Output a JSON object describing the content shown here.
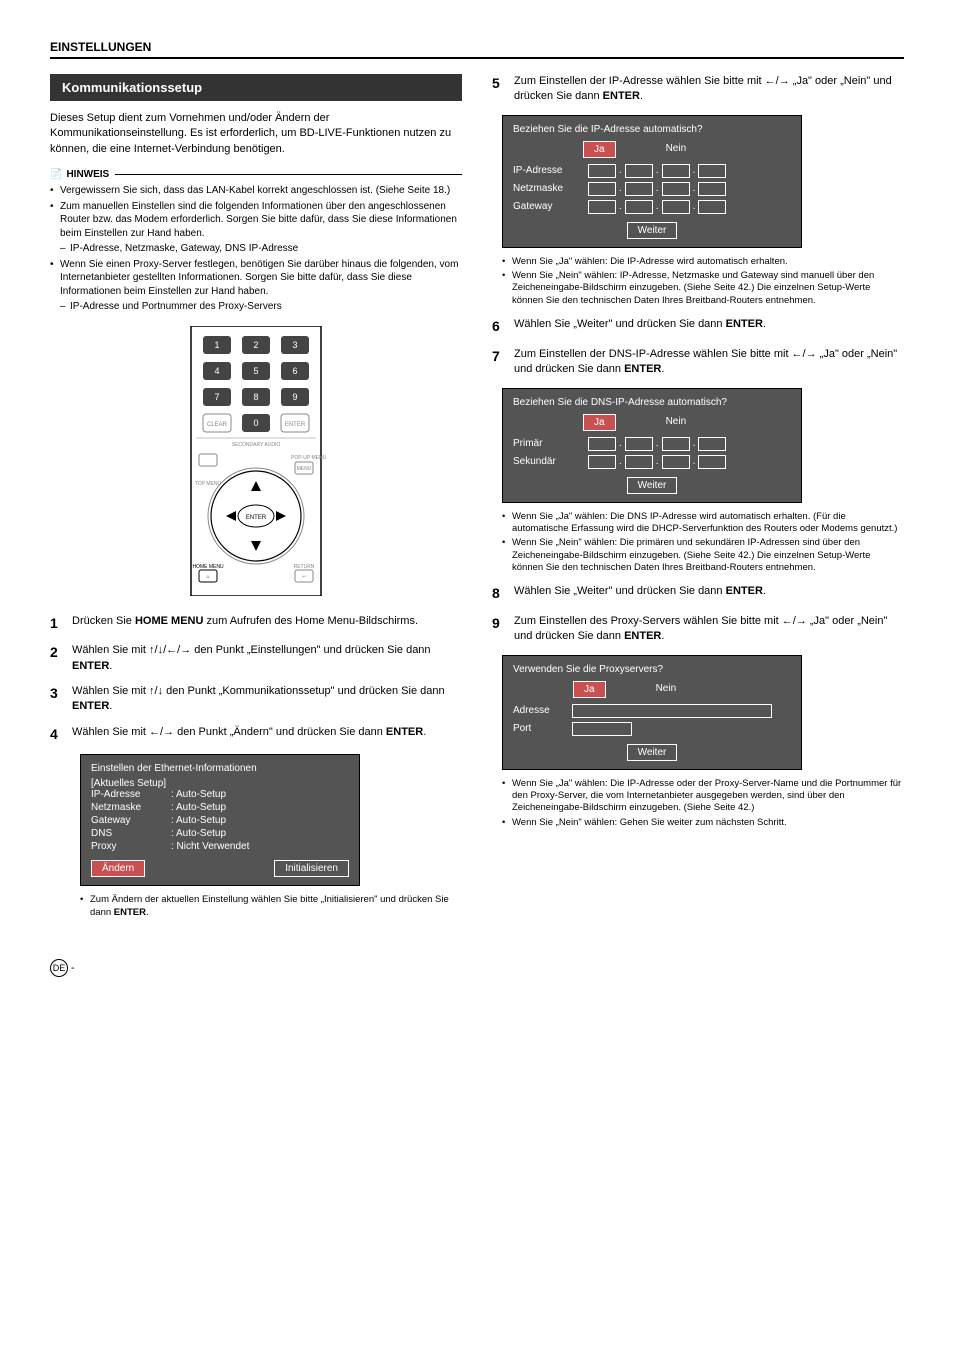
{
  "header": "EINSTELLUNGEN",
  "section_heading": "Kommunikationssetup",
  "intro": "Dieses Setup dient zum Vornehmen und/oder Ändern der Kommunikationseinstellung. Es ist erforderlich, um BD-LIVE-Funktionen nutzen zu können, die eine Internet-Verbindung benötigen.",
  "note_label": "HINWEIS",
  "notes": [
    "Vergewissern Sie sich, dass das LAN-Kabel korrekt angeschlossen ist. (Siehe Seite 18.)",
    "Zum manuellen Einstellen sind die folgenden Informationen über den angeschlossenen Router bzw. das Modem erforderlich. Sorgen Sie bitte dafür, dass Sie diese Informationen beim Einstellen zur Hand haben."
  ],
  "notes_sub1": "IP-Adresse, Netzmaske, Gateway, DNS IP-Adresse",
  "notes2": "Wenn Sie einen Proxy-Server festlegen, benötigen Sie darüber hinaus die folgenden, vom Internetanbieter gestellten Informationen. Sorgen Sie bitte dafür, dass Sie diese Informationen beim Einstellen zur Hand haben.",
  "notes_sub2": "IP-Adresse und Portnummer des Proxy-Servers",
  "remote": {
    "keys": [
      "1",
      "2",
      "3",
      "4",
      "5",
      "6",
      "7",
      "8",
      "9",
      "CLEAR",
      "0",
      "ENTER"
    ],
    "labels": {
      "secondary": "SECONDARY AUDIO",
      "popup": "POP-UP MENU",
      "menu": "MENU",
      "topmenu": "TOP MENU",
      "enter": "ENTER",
      "home": "HOME MENU",
      "return": "RETURN"
    }
  },
  "steps_left": [
    {
      "n": "1",
      "t": "Drücken Sie <b>HOME MENU</b> zum Aufrufen des Home Menu-Bildschirms."
    },
    {
      "n": "2",
      "t": "Wählen Sie mit ↑/↓/←/→ den Punkt „Einstellungen\" und drücken Sie dann <b>ENTER</b>."
    },
    {
      "n": "3",
      "t": "Wählen Sie mit ↑/↓ den Punkt „Kommunikationssetup\" und drücken Sie dann <b>ENTER</b>."
    },
    {
      "n": "4",
      "t": "Wählen Sie mit ←/→ den Punkt „Ändern\" und drücken Sie dann <b>ENTER</b>."
    }
  ],
  "ethernet_box": {
    "title": "Einstellen der Ethernet-Informationen",
    "subtitle": "[Aktuelles Setup]",
    "rows": [
      {
        "l": "IP-Adresse",
        "v": ": Auto-Setup"
      },
      {
        "l": "Netzmaske",
        "v": ": Auto-Setup"
      },
      {
        "l": "Gateway",
        "v": ": Auto-Setup"
      },
      {
        "l": "DNS",
        "v": ": Auto-Setup"
      },
      {
        "l": "Proxy",
        "v": ": Nicht Verwendet"
      }
    ],
    "btn_change": "Ändern",
    "btn_init": "Initialisieren"
  },
  "ethernet_sub": "Zum Ändern der aktuellen Einstellung wählen Sie bitte „Initialisieren\" und drücken Sie dann <b>ENTER</b>.",
  "step5": {
    "n": "5",
    "t": "Zum Einstellen der IP-Adresse wählen Sie bitte mit ←/→ „Ja\" oder „Nein\" und drücken Sie dann <b>ENTER</b>."
  },
  "ip_box": {
    "title": "Beziehen Sie die IP-Adresse automatisch?",
    "yes": "Ja",
    "no": "Nein",
    "rows": [
      "IP-Adresse",
      "Netzmaske",
      "Gateway"
    ],
    "next": "Weiter"
  },
  "ip_sub": [
    "Wenn Sie „Ja\" wählen: Die IP-Adresse wird automatisch erhalten.",
    "Wenn Sie „Nein\" wählen: IP-Adresse, Netzmaske und Gateway sind manuell über den Zeicheneingabe-Bildschirm einzugeben. (Siehe Seite 42.) Die einzelnen Setup-Werte können Sie den technischen Daten Ihres Breitband-Routers entnehmen."
  ],
  "step6": {
    "n": "6",
    "t": "Wählen Sie „Weiter\" und drücken Sie dann <b>ENTER</b>."
  },
  "step7": {
    "n": "7",
    "t": "Zum Einstellen der DNS-IP-Adresse wählen Sie bitte mit ←/→ „Ja\" oder „Nein\" und drücken Sie dann <b>ENTER</b>."
  },
  "dns_box": {
    "title": "Beziehen Sie die DNS-IP-Adresse automatisch?",
    "rows": [
      "Primär",
      "Sekundär"
    ]
  },
  "dns_sub": [
    "Wenn Sie „Ja\" wählen: Die DNS IP-Adresse wird automatisch erhalten. (Für die automatische Erfassung wird die DHCP-Serverfunktion des Routers oder Modems genutzt.)",
    "Wenn Sie „Nein\" wählen: Die primären und sekundären IP-Adressen sind über den Zeicheneingabe-Bildschirm einzugeben. (Siehe Seite 42.) Die einzelnen Setup-Werte können Sie den technischen Daten Ihres Breitband-Routers entnehmen."
  ],
  "step8": {
    "n": "8",
    "t": "Wählen Sie „Weiter\" und drücken Sie dann <b>ENTER</b>."
  },
  "step9": {
    "n": "9",
    "t": "Zum Einstellen des Proxy-Servers wählen Sie bitte mit ←/→ „Ja\" oder „Nein\" und drücken Sie dann <b>ENTER</b>."
  },
  "proxy_box": {
    "title": "Verwenden Sie die Proxyservers?",
    "rows": [
      "Adresse",
      "Port"
    ]
  },
  "proxy_sub": [
    "Wenn Sie „Ja\" wählen: Die IP-Adresse oder der Proxy-Server-Name und die Portnummer für den Proxy-Server, die vom Internetanbieter ausgegeben werden, sind über den Zeicheneingabe-Bildschirm einzugeben. (Siehe Seite 42.)",
    "Wenn Sie „Nein\" wählen: Gehen Sie weiter zum nächsten Schritt."
  ],
  "page_num": "DE",
  "colors": {
    "section_bg": "#333333",
    "ui_bg": "#545454",
    "active_btn": "#c95050"
  }
}
